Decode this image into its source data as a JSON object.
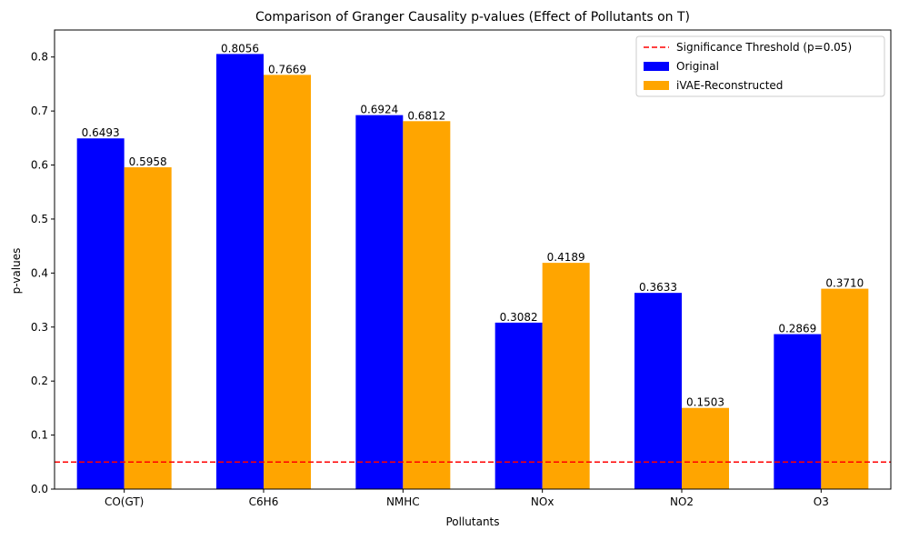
{
  "chart_data": {
    "type": "bar",
    "title": "Comparison of Granger Causality p-values (Effect of Pollutants on T)",
    "xlabel": "Pollutants",
    "ylabel": "p-values",
    "ylim": [
      0,
      0.85
    ],
    "yticks": [
      "0.0",
      "0.1",
      "0.2",
      "0.3",
      "0.4",
      "0.5",
      "0.6",
      "0.7",
      "0.8"
    ],
    "categories": [
      "CO(GT)",
      "C6H6",
      "NMHC",
      "NOx",
      "NO2",
      "O3"
    ],
    "series": [
      {
        "name": "Original",
        "color": "#0000ff",
        "values": [
          0.6493,
          0.8056,
          0.6924,
          0.3082,
          0.3633,
          0.2869
        ],
        "labels": [
          "0.6493",
          "0.8056",
          "0.6924",
          "0.3082",
          "0.3633",
          "0.2869"
        ]
      },
      {
        "name": "iVAE-Reconstructed",
        "color": "#ffa500",
        "values": [
          0.5958,
          0.7669,
          0.6812,
          0.4189,
          0.1503,
          0.371
        ],
        "labels": [
          "0.5958",
          "0.7669",
          "0.6812",
          "0.4189",
          "0.1503",
          "0.3710"
        ]
      }
    ],
    "threshold": {
      "name": "Significance Threshold (p=0.05)",
      "value": 0.05,
      "color": "#ff0000",
      "style": "dashed"
    },
    "legend_position": "top-right",
    "grid": false
  }
}
